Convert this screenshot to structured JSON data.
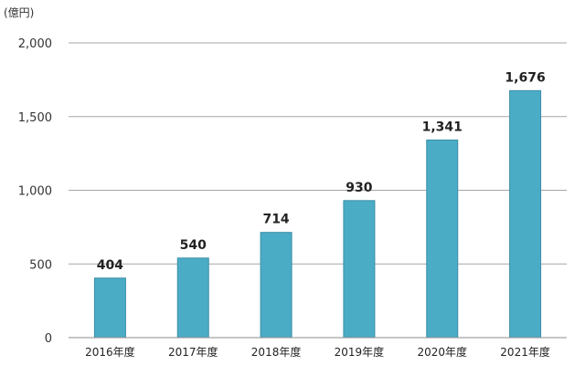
{
  "chart_data": {
    "type": "bar",
    "unit_label": "(億円)",
    "categories": [
      "2016年度",
      "2017年度",
      "2018年度",
      "2019年度",
      "2020年度",
      "2021年度"
    ],
    "values": [
      404,
      540,
      714,
      930,
      1341,
      1676
    ],
    "value_labels": [
      "404",
      "540",
      "714",
      "930",
      "1,341",
      "1,676"
    ],
    "ylim": [
      0,
      2000
    ],
    "yticks": [
      0,
      500,
      1000,
      1500,
      2000
    ],
    "ytick_labels": [
      "0",
      "500",
      "1,000",
      "1,500",
      "2,000"
    ],
    "grid": true,
    "bar_color": "#4bacc6",
    "bar_edge_color": "#3a8fa6"
  }
}
